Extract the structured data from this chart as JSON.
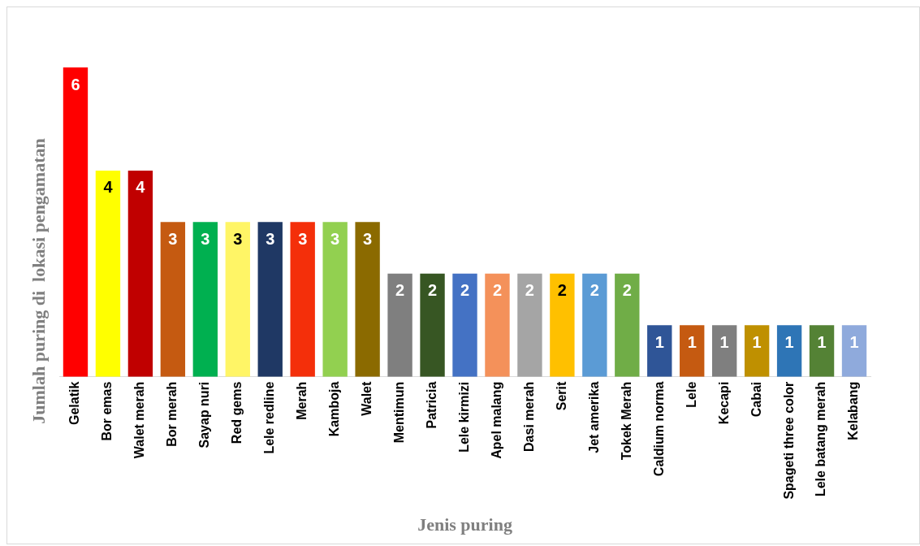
{
  "chart_data": {
    "type": "bar",
    "xlabel": "Jenis puring",
    "ylabel": "Jumlah puring di  lokasi pengamatan",
    "categories": [
      "Gelatik",
      "Bor emas",
      "Walet merah",
      "Bor merah",
      "Sayap nuri",
      "Red gems",
      "Lele redline",
      "Merah",
      "Kamboja",
      "Walet",
      "Mentimun",
      "Patricia",
      "Lele kirmizi",
      "Apel malang",
      "Dasi merah",
      "Serit",
      "Jet amerika",
      "Tokek Merah",
      "Caldium norma",
      "Lele",
      "Kecapi",
      "Cabai",
      "Spageti three color",
      "Lele batang merah",
      "Kelabang"
    ],
    "values": [
      6,
      4,
      4,
      3,
      3,
      3,
      3,
      3,
      3,
      3,
      2,
      2,
      2,
      2,
      2,
      2,
      2,
      2,
      1,
      1,
      1,
      1,
      1,
      1,
      1
    ],
    "colors": [
      "#ff0000",
      "#ffff00",
      "#c00000",
      "#c55a11",
      "#00b050",
      "#fff566",
      "#1f3864",
      "#f42f0a",
      "#92d050",
      "#8b6a00",
      "#7f7f7f",
      "#375623",
      "#4472c4",
      "#f4915a",
      "#a5a5a5",
      "#ffc000",
      "#5b9bd5",
      "#70ad47",
      "#2f5597",
      "#c55a11",
      "#7f7f7f",
      "#bf9000",
      "#2e75b6",
      "#548235",
      "#8faadc"
    ],
    "data_labels": true,
    "grid": false,
    "legend": false
  }
}
